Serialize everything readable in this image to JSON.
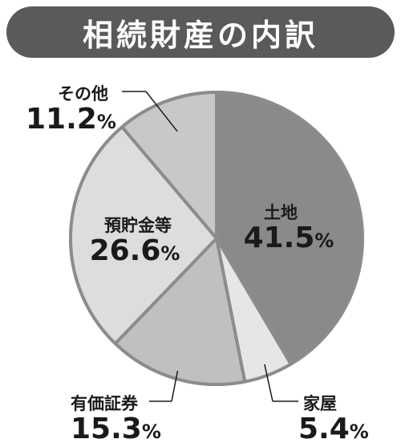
{
  "chart_data": {
    "type": "pie",
    "title": "相続財産の内訳",
    "unit": "%",
    "slices": [
      {
        "label": "土地",
        "value": 41.5,
        "value_text": "41.5",
        "color": "#8a8a8a"
      },
      {
        "label": "家屋",
        "value": 5.4,
        "value_text": "5.4",
        "color": "#e6e6e6"
      },
      {
        "label": "有価証券",
        "value": 15.3,
        "value_text": "15.3",
        "color": "#c0c0c0"
      },
      {
        "label": "預貯金等",
        "value": 26.6,
        "value_text": "26.6",
        "color": "#dddddd"
      },
      {
        "label": "その他",
        "value": 11.2,
        "value_text": "11.2",
        "color": "#c8c8c8"
      }
    ],
    "start": "top",
    "direction": "clockwise",
    "border_color": "#8c8c8c"
  }
}
